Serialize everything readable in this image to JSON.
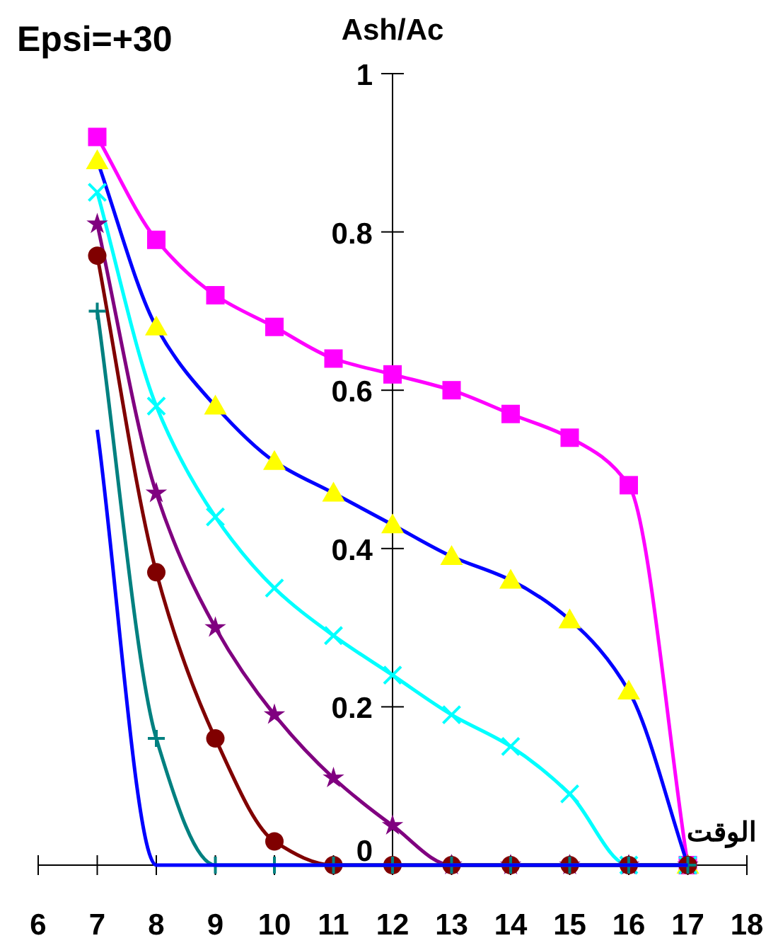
{
  "chart_data": {
    "type": "line",
    "title": "Epsi=+30",
    "ylabel": "Ash/Ac",
    "xlabel": "الوقت",
    "x": [
      7,
      8,
      9,
      10,
      11,
      12,
      13,
      14,
      15,
      16,
      17
    ],
    "xlim": [
      6,
      18
    ],
    "xticks": [
      6,
      7,
      8,
      9,
      10,
      11,
      12,
      13,
      14,
      15,
      16,
      17,
      18
    ],
    "ylim": [
      0,
      1
    ],
    "yticks": [
      0,
      0.2,
      0.4,
      0.6,
      0.8,
      1
    ],
    "grid": false,
    "series": [
      {
        "color": "#ff00ff",
        "marker": "square",
        "values": [
          0.92,
          0.79,
          0.72,
          0.68,
          0.64,
          0.62,
          0.6,
          0.57,
          0.54,
          0.48,
          0
        ]
      },
      {
        "color": "#0000ff",
        "colors": [
          "#ffff00",
          "#ffff00",
          "#ffff00",
          "#ffff00",
          "#ffff00",
          "#ffff00",
          "#ffff00",
          "#ffff00",
          "#ffff00",
          "#ffff00",
          "#ffff00"
        ],
        "marker": "triangle",
        "values": [
          0.89,
          0.68,
          0.58,
          0.51,
          0.47,
          0.43,
          0.39,
          0.36,
          0.31,
          0.22,
          0
        ]
      },
      {
        "color": "#00ffff",
        "marker": "cross",
        "values": [
          0.85,
          0.58,
          0.44,
          0.35,
          0.29,
          0.24,
          0.19,
          0.15,
          0.09,
          0,
          0
        ]
      },
      {
        "color": "#800080",
        "marker": "star",
        "values": [
          0.81,
          0.47,
          0.3,
          0.19,
          0.11,
          0.05,
          0,
          0,
          0,
          0,
          0
        ]
      },
      {
        "color": "#800000",
        "marker": "circle",
        "values": [
          0.77,
          0.37,
          0.16,
          0.03,
          0,
          0,
          0,
          0,
          0,
          0,
          0
        ]
      },
      {
        "color": "#008080",
        "marker": "plus",
        "values": [
          0.7,
          0.16,
          0,
          0,
          0,
          0,
          0,
          0,
          0,
          0,
          0
        ]
      },
      {
        "color": "#0000ff",
        "marker": "none",
        "values": [
          0.55,
          0,
          0,
          0,
          0,
          0,
          0,
          0,
          0,
          0,
          0
        ]
      }
    ]
  }
}
